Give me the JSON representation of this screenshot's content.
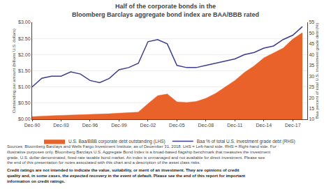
{
  "chart_data": {
    "type": "area",
    "title": "Half of the corporate bonds in the",
    "subtitle": "Bloomberg Barclays aggregate bond index are BAA/BBB rated",
    "x": [
      1990,
      1991,
      1992,
      1993,
      1994,
      1995,
      1996,
      1997,
      1998,
      1999,
      2000,
      2001,
      2002,
      2003,
      2004,
      2005,
      2006,
      2007,
      2008,
      2009,
      2010,
      2011,
      2012,
      2013,
      2014,
      2015,
      2016,
      2017,
      2018
    ],
    "series": [
      {
        "name": "U.S. Baa/BBB corporate debt outstanding (LHS)",
        "type": "area",
        "color": "#e8622a",
        "values": [
          0.08,
          0.1,
          0.11,
          0.12,
          0.13,
          0.13,
          0.14,
          0.15,
          0.17,
          0.19,
          0.2,
          0.22,
          0.48,
          0.73,
          0.78,
          0.54,
          0.52,
          0.55,
          0.65,
          0.8,
          1.0,
          1.2,
          1.45,
          1.65,
          1.9,
          2.05,
          2.2,
          2.48,
          2.68
        ]
      },
      {
        "name": "Baa % of total U.S. investment grade debt (RHS)",
        "type": "line",
        "axis": "y2",
        "color": "#3d3d8f",
        "values": [
          25,
          29,
          30,
          30,
          32,
          31,
          28,
          27,
          29,
          33,
          34,
          36,
          46,
          47,
          45,
          35,
          34,
          34,
          35,
          36,
          37,
          38,
          40,
          41,
          43,
          44,
          47,
          49,
          53
        ]
      }
    ],
    "xlim": [
      1990,
      2018.5
    ],
    "xticks": [
      {
        "value": 1990,
        "label": "Dec-90"
      },
      {
        "value": 1993,
        "label": "Dec-93"
      },
      {
        "value": 1996,
        "label": "Dec-96"
      },
      {
        "value": 1999,
        "label": "Dec-99"
      },
      {
        "value": 2002,
        "label": "Dec-02"
      },
      {
        "value": 2005,
        "label": "Dec-05"
      },
      {
        "value": 2008,
        "label": "Dec-08"
      },
      {
        "value": 2011,
        "label": "Dec-11"
      },
      {
        "value": 2014,
        "label": "Dec-14"
      },
      {
        "value": 2017,
        "label": "Dec-17"
      }
    ],
    "ylabel": "Outstanding par amount (billions U.S. dollars)",
    "ylim": [
      0,
      3.0
    ],
    "yticks": [
      {
        "value": 0.0,
        "label": "$0.00"
      },
      {
        "value": 0.5,
        "label": "$0.50"
      },
      {
        "value": 1.0,
        "label": "$1.00"
      },
      {
        "value": 1.5,
        "label": "$1.50"
      },
      {
        "value": 2.0,
        "label": "$2.00"
      },
      {
        "value": 2.5,
        "label": "$2.50"
      },
      {
        "value": 3.0,
        "label": "$3.00"
      }
    ],
    "y2label": "Baa percent of total U.S. investment grade debt (%)",
    "y2lim": [
      10,
      55
    ],
    "y2ticks": [
      10,
      15,
      20,
      25,
      30,
      35,
      40,
      45,
      50,
      55
    ],
    "grid": true,
    "legend": "bottom",
    "annotations": [
      "Sources: Bloomberg Barclays and Wells Fargo Investment Institute, as of December 31, 2018. LHS = Left-hand side. RHS = Right-hand side. For illustrative purposes only. Bloomberg Barclays U.S. Aggregate Bond Index is a broad-based flagship benchmark that measures the investment grade, U.S. dollar-denominated, fixed-rate taxable bond market. An index is unmanaged and not available for direct investment. Please see the end of this presentation for notes associated with this chart and a description of the asset class risks.",
      "Credit ratings are not intended to indicate the value, suitability, or merit of an investment. They are opinions of credit quality and, in some cases, the expected recovery in the event of default. Please see the end of this report for important information on credit ratings."
    ]
  }
}
